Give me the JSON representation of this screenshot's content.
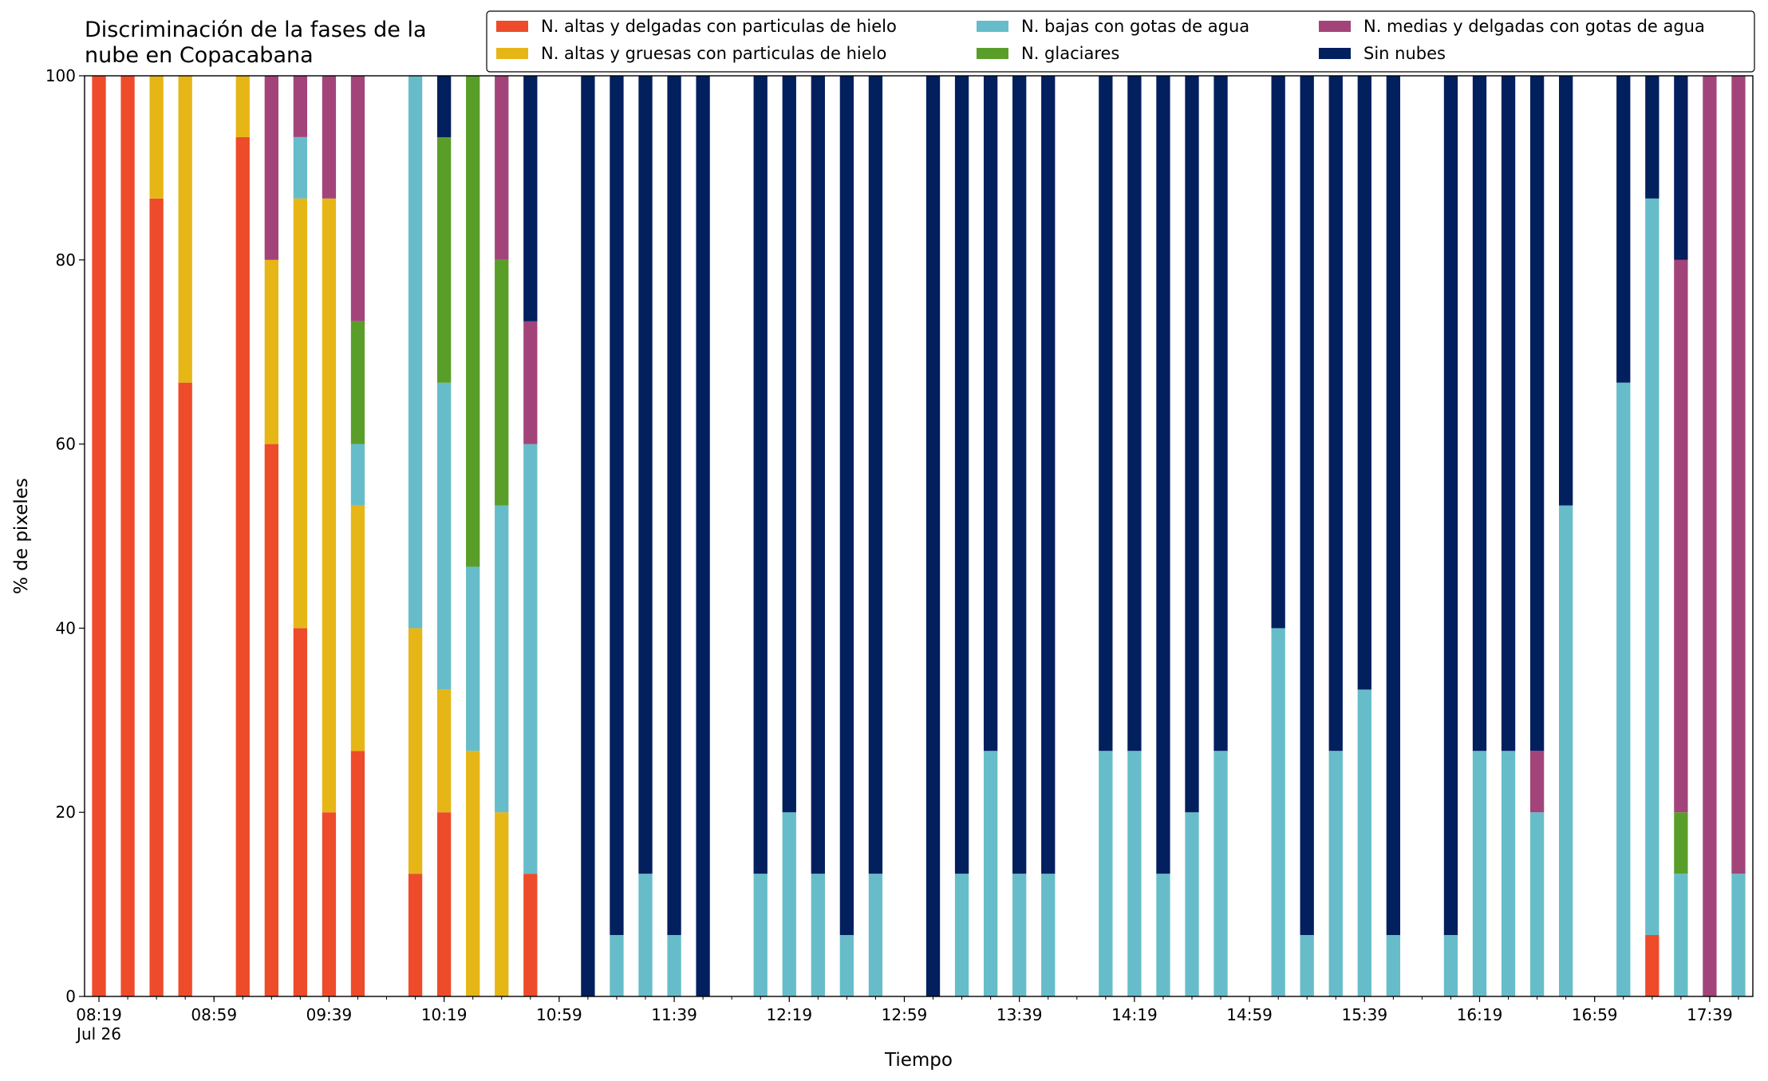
{
  "chart_data": {
    "type": "bar",
    "stacked": true,
    "title": "Discriminación de la fases de la\nnube en Copacabana",
    "x_label": "Tiempo",
    "y_label": "% de pixeles",
    "x_date_label": "Jul 26",
    "x": [
      "08:19",
      "08:29",
      "08:39",
      "08:49",
      "09:09",
      "09:19",
      "09:29",
      "09:39",
      "09:49",
      "10:09",
      "10:19",
      "10:29",
      "10:39",
      "10:49",
      "11:09",
      "11:19",
      "11:29",
      "11:39",
      "11:49",
      "12:09",
      "12:19",
      "12:29",
      "12:39",
      "12:49",
      "13:09",
      "13:19",
      "13:29",
      "13:39",
      "13:49",
      "14:09",
      "14:19",
      "14:29",
      "14:39",
      "14:49",
      "15:09",
      "15:19",
      "15:29",
      "15:39",
      "15:49",
      "16:09",
      "16:19",
      "16:29",
      "16:39",
      "16:49",
      "17:09",
      "17:19",
      "17:29",
      "17:39",
      "17:49"
    ],
    "xlim": [
      "08:14",
      "17:54"
    ],
    "xticks": [
      "08:19",
      "08:59",
      "09:39",
      "10:19",
      "10:59",
      "11:39",
      "12:19",
      "12:59",
      "13:39",
      "14:19",
      "14:59",
      "15:39",
      "16:19",
      "16:59",
      "17:39"
    ],
    "ylim": [
      0,
      100
    ],
    "yticks": [
      0,
      20,
      40,
      60,
      80,
      100
    ],
    "legend": "top-right",
    "series": [
      {
        "name": "N. altas y delgadas con particulas de hielo",
        "color": "#ee4b2b",
        "values": [
          100,
          100,
          86.67,
          66.67,
          93.33,
          60,
          40,
          20,
          26.67,
          13.33,
          20,
          0,
          0,
          13.33,
          0,
          0,
          0,
          0,
          0,
          0,
          0,
          0,
          0,
          0,
          0,
          0,
          0,
          0,
          0,
          0,
          0,
          0,
          0,
          0,
          0,
          0,
          0,
          0,
          0,
          0,
          0,
          0,
          0,
          0,
          0,
          6.67,
          0,
          0,
          0
        ]
      },
      {
        "name": "N. altas y gruesas con particulas de hielo",
        "color": "#e6b617",
        "values": [
          0,
          0,
          13.33,
          33.33,
          6.67,
          20,
          46.67,
          66.67,
          26.67,
          26.67,
          13.33,
          26.67,
          20,
          0,
          0,
          0,
          0,
          0,
          0,
          0,
          0,
          0,
          0,
          0,
          0,
          0,
          0,
          0,
          0,
          0,
          0,
          0,
          0,
          0,
          0,
          0,
          0,
          0,
          0,
          0,
          0,
          0,
          0,
          0,
          0,
          0,
          0,
          0,
          0
        ]
      },
      {
        "name": "N. bajas con gotas de agua",
        "color": "#66bdc9",
        "values": [
          0,
          0,
          0,
          0,
          0,
          0,
          6.67,
          0,
          6.67,
          60,
          33.33,
          20,
          33.33,
          46.67,
          0,
          6.67,
          13.33,
          6.67,
          0,
          13.33,
          20,
          13.33,
          6.67,
          13.33,
          0,
          13.33,
          26.67,
          13.33,
          13.33,
          26.67,
          26.67,
          13.33,
          20,
          26.67,
          40,
          6.67,
          26.67,
          33.33,
          6.67,
          6.67,
          26.67,
          26.67,
          20,
          53.33,
          66.67,
          80,
          13.33,
          0,
          13.33
        ]
      },
      {
        "name": "N. glaciares",
        "color": "#5a9e2a",
        "values": [
          0,
          0,
          0,
          0,
          0,
          0,
          0,
          0,
          13.33,
          0,
          26.67,
          53.33,
          26.67,
          0,
          0,
          0,
          0,
          0,
          0,
          0,
          0,
          0,
          0,
          0,
          0,
          0,
          0,
          0,
          0,
          0,
          0,
          0,
          0,
          0,
          0,
          0,
          0,
          0,
          0,
          0,
          0,
          0,
          0,
          0,
          0,
          0,
          6.67,
          0,
          0
        ]
      },
      {
        "name": "N. medias y delgadas con gotas de agua",
        "color": "#a2447a",
        "values": [
          0,
          0,
          0,
          0,
          0,
          20,
          6.67,
          13.33,
          26.67,
          0,
          0,
          0,
          20,
          13.33,
          0,
          0,
          0,
          0,
          0,
          0,
          0,
          0,
          0,
          0,
          0,
          0,
          0,
          0,
          0,
          0,
          0,
          0,
          0,
          0,
          0,
          0,
          0,
          0,
          0,
          0,
          0,
          0,
          6.67,
          0,
          0,
          0,
          60,
          100,
          86.67
        ]
      },
      {
        "name": "Sin nubes",
        "color": "#021f5e",
        "values": [
          0,
          0,
          0,
          0,
          0,
          0,
          0,
          0,
          0,
          0,
          6.67,
          0,
          0,
          26.67,
          100,
          93.33,
          86.67,
          93.33,
          100,
          86.67,
          80,
          86.67,
          93.33,
          86.67,
          100,
          86.67,
          73.33,
          86.67,
          86.67,
          73.33,
          73.33,
          86.67,
          80,
          73.33,
          60,
          93.33,
          73.33,
          66.67,
          93.33,
          93.33,
          73.33,
          73.33,
          73.33,
          46.67,
          33.33,
          13.33,
          20,
          0,
          0
        ]
      }
    ]
  }
}
